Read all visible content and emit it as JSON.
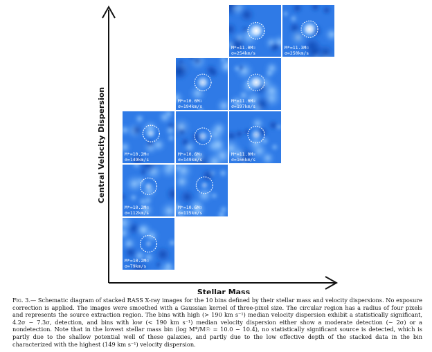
{
  "axes": {
    "y_label": "Central Velocity Dispersion",
    "x_label": "Stellar Mass"
  },
  "grid": {
    "columns": 4,
    "rows": 5
  },
  "tiles": [
    {
      "col": 0,
      "row": 2,
      "mass_label": "M*=10.2M☉",
      "sigma_label": "σ=149km/s",
      "source": 0.45,
      "circle": [
        0.55,
        0.43
      ]
    },
    {
      "col": 0,
      "row": 3,
      "mass_label": "M*=10.2M☉",
      "sigma_label": "σ=112km/s",
      "source": 0.4,
      "circle": [
        0.5,
        0.42
      ]
    },
    {
      "col": 0,
      "row": 4,
      "mass_label": "M*=10.2M☉",
      "sigma_label": "σ=79km/s",
      "source": 0.3,
      "circle": [
        0.5,
        0.5
      ]
    },
    {
      "col": 1,
      "row": 1,
      "mass_label": "M*=10.6M☉",
      "sigma_label": "σ=194km/s",
      "source": 0.75,
      "circle": [
        0.52,
        0.47
      ]
    },
    {
      "col": 1,
      "row": 2,
      "mass_label": "M*=10.6M☉",
      "sigma_label": "σ=149km/s",
      "source": 0.55,
      "circle": [
        0.52,
        0.48
      ]
    },
    {
      "col": 1,
      "row": 3,
      "mass_label": "M*=10.6M☉",
      "sigma_label": "σ=115km/s",
      "source": 0.35,
      "circle": [
        0.55,
        0.4
      ]
    },
    {
      "col": 2,
      "row": 0,
      "mass_label": "M*=11.0M☉",
      "sigma_label": "σ=254km/s",
      "source": 1.0,
      "circle": [
        0.52,
        0.5
      ]
    },
    {
      "col": 2,
      "row": 1,
      "mass_label": "M*=11.0M☉",
      "sigma_label": "σ=197km/s",
      "source": 0.9,
      "circle": [
        0.52,
        0.47
      ]
    },
    {
      "col": 2,
      "row": 2,
      "mass_label": "M*=11.0M☉",
      "sigma_label": "σ=166km/s",
      "source": 0.6,
      "circle": [
        0.52,
        0.45
      ]
    },
    {
      "col": 3,
      "row": 0,
      "mass_label": "M*=11.3M☉",
      "sigma_label": "σ=250km/s",
      "source": 0.95,
      "circle": [
        0.52,
        0.47
      ]
    }
  ],
  "caption": {
    "fig_label": "Fig. 3.—",
    "text": "Schematic diagram of stacked RASS X-ray images for the 10 bins defined by their stellar mass and velocity dispersions. No exposure correction is applied. The images were smoothed with a Gaussian kernel of three-pixel size. The circular region has a radius of four pixels and represents the source extraction region. The bins with high (> 190 km s⁻¹) median velocity dispersion exhibit a statistically significant, 4.2σ − 7.3σ, detection, and bins with low (< 190 km s⁻¹) median velocity dispersion either show a moderate detection (∼ 2σ) or a nondetection. Note that in the lowest stellar mass bin (log M*/M☉ = 10.0 − 10.4), no statistically significant source is detected, which is partly due to the shallow potential well of these galaxies, and partly due to the low effective depth of the stacked data in the bin characterized with the highest (149 km s⁻¹) velocity dispersion."
  }
}
